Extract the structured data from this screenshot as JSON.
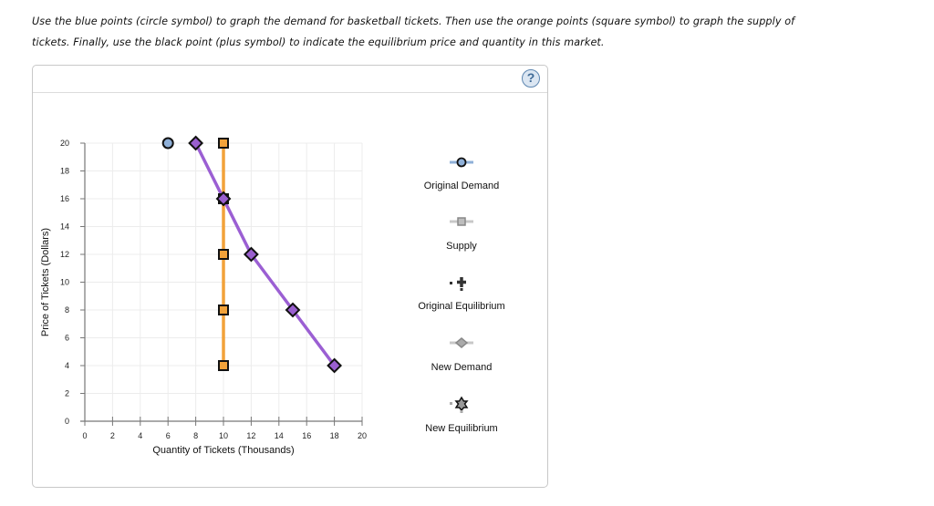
{
  "instructions": {
    "line1": "Use the blue points (circle symbol) to graph the demand for basketball tickets. Then use the orange points (square symbol) to graph the supply of",
    "line2": "tickets. Finally, use the black point (plus symbol) to indicate the equilibrium price and quantity in this market."
  },
  "help": {
    "label": "?"
  },
  "legend": {
    "items": [
      {
        "label": "Original Demand",
        "icon": "blue-circle-icon"
      },
      {
        "label": "Supply",
        "icon": "orange-square-icon"
      },
      {
        "label": "Original Equilibrium",
        "icon": "black-plus-icon"
      },
      {
        "label": "New Demand",
        "icon": "purple-diamond-icon"
      },
      {
        "label": "New Equilibrium",
        "icon": "star-icon"
      }
    ]
  },
  "colors": {
    "demand": "#8fb0d8",
    "supply": "#f2a23a",
    "new_demand": "#9a5fcf",
    "new_demand_line": "#9b5fd3",
    "axis": "#777777",
    "grid": "#ececec"
  },
  "chart_data": {
    "type": "scatter",
    "title": "",
    "xlabel": "Quantity of Tickets (Thousands)",
    "ylabel": "Price of Tickets (Dollars)",
    "xlim": [
      0,
      20
    ],
    "ylim": [
      0,
      20
    ],
    "x_ticks": [
      0,
      2,
      4,
      6,
      8,
      10,
      12,
      14,
      16,
      18,
      20
    ],
    "y_ticks": [
      0,
      2,
      4,
      6,
      8,
      10,
      12,
      14,
      16,
      18,
      20
    ],
    "grid": true,
    "legend_position": "right",
    "series": [
      {
        "name": "Original Demand",
        "marker": "circle",
        "points": [
          [
            6,
            20
          ]
        ],
        "line": false
      },
      {
        "name": "Supply",
        "marker": "square",
        "points": [
          [
            10,
            20
          ],
          [
            10,
            16
          ],
          [
            10,
            12
          ],
          [
            10,
            8
          ],
          [
            10,
            4
          ]
        ],
        "line": true
      },
      {
        "name": "New Demand",
        "marker": "diamond",
        "points": [
          [
            8,
            20
          ],
          [
            10,
            16
          ],
          [
            12,
            12
          ],
          [
            15,
            8
          ],
          [
            18,
            4
          ]
        ],
        "line": true
      },
      {
        "name": "Original Equilibrium",
        "marker": "plus",
        "points": []
      },
      {
        "name": "New Equilibrium",
        "marker": "star",
        "points": []
      }
    ]
  }
}
